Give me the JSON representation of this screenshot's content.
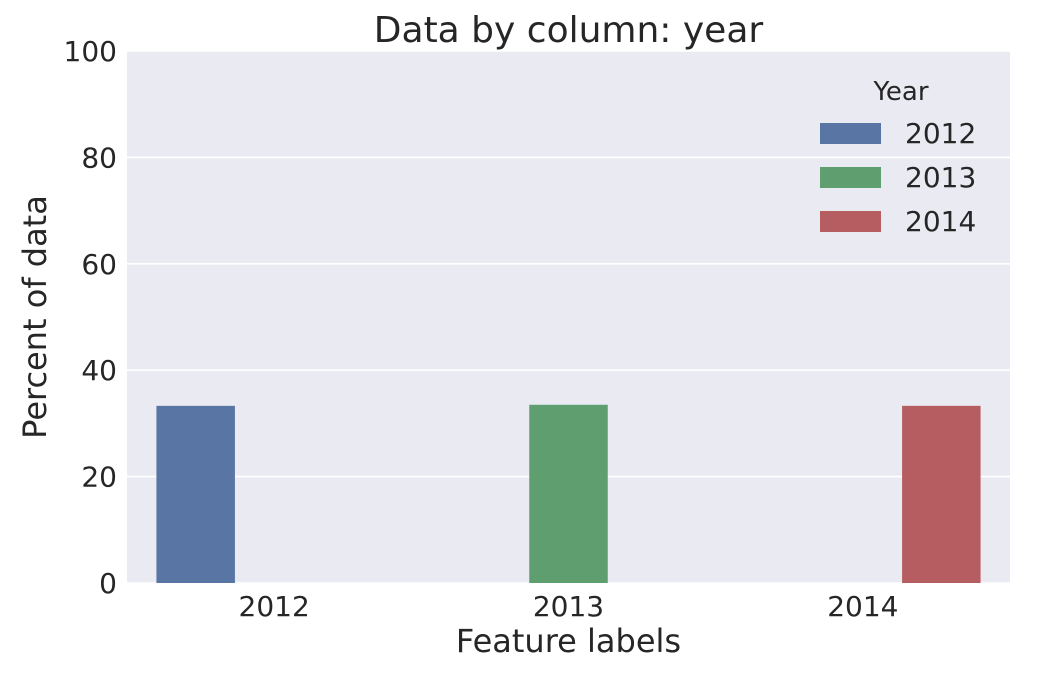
{
  "chart_data": {
    "type": "bar",
    "title": "Data by column: year",
    "xlabel": "Feature labels",
    "ylabel": "Percent of data",
    "categories": [
      "2012",
      "2013",
      "2014"
    ],
    "series": [
      {
        "name": "2012",
        "color": "#5875a4",
        "values": [
          33.3,
          0,
          0
        ]
      },
      {
        "name": "2013",
        "color": "#5f9e6e",
        "values": [
          0,
          33.5,
          0
        ]
      },
      {
        "name": "2014",
        "color": "#b55d60",
        "values": [
          0,
          0,
          33.3
        ]
      }
    ],
    "ylim": [
      0,
      100
    ],
    "yticks": [
      "0",
      "20",
      "40",
      "60",
      "80",
      "100"
    ],
    "grid": true,
    "legend": {
      "title": "Year",
      "placement": "top-right"
    },
    "colors": {
      "background": "#eaeaf2",
      "gridline": "#ffffff",
      "text": "#262626"
    }
  }
}
